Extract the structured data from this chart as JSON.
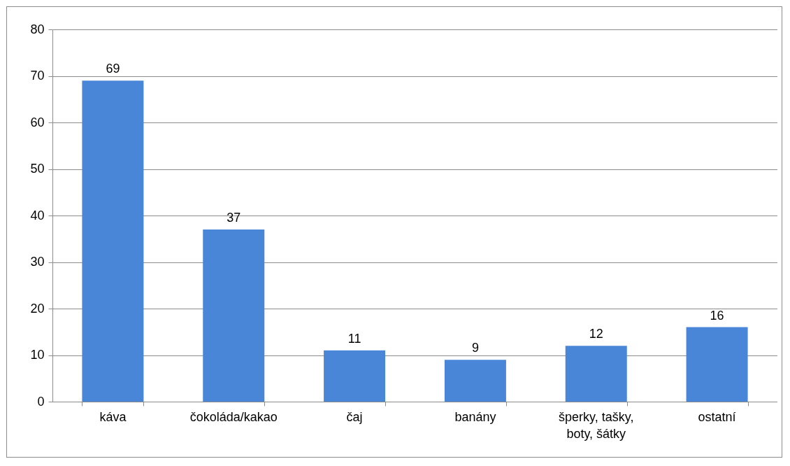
{
  "chart_data": {
    "type": "bar",
    "categories": [
      "káva",
      "čokoláda/kakao",
      "čaj",
      "banány",
      "šperky, tašky, boty, šátky",
      "ostatní"
    ],
    "values": [
      69,
      37,
      11,
      9,
      12,
      16
    ],
    "color": "#4a86d8",
    "ylim": [
      0,
      80
    ],
    "yticks": [
      0,
      10,
      20,
      30,
      40,
      50,
      60,
      70,
      80
    ],
    "grid": "y",
    "data_labels": true
  }
}
